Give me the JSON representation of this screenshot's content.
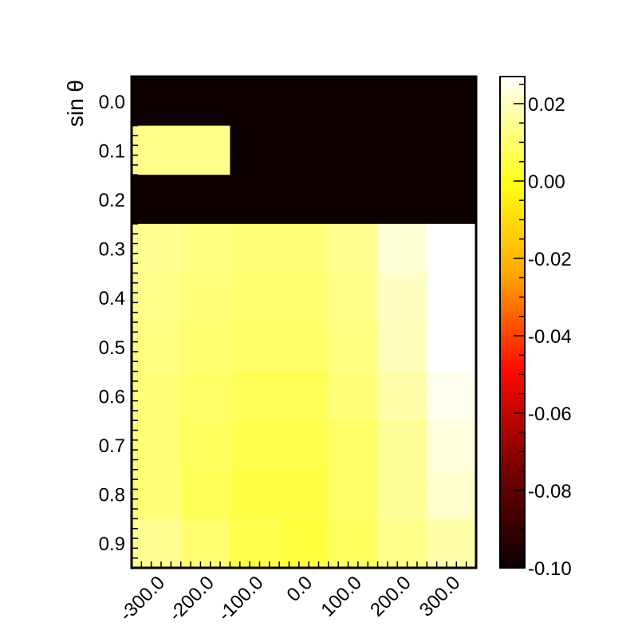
{
  "chart_data": {
    "type": "heatmap",
    "title": "",
    "xlabel": "",
    "ylabel": "sin θ",
    "x_ticks": [
      "-300.0",
      "-200.0",
      "-100.0",
      "0.0",
      "100.0",
      "200.0",
      "300.0"
    ],
    "y_ticks": [
      "0.0",
      "0.1",
      "0.2",
      "0.3",
      "0.4",
      "0.5",
      "0.6",
      "0.7",
      "0.8",
      "0.9"
    ],
    "x_range": [
      -350,
      350
    ],
    "y_range": [
      -0.05,
      0.95
    ],
    "x_bins": [
      -300,
      -200,
      -100,
      0,
      100,
      200,
      300
    ],
    "y_bins": [
      0.0,
      0.1,
      0.2,
      0.3,
      0.4,
      0.5,
      0.6,
      0.7,
      0.8,
      0.9
    ],
    "x_bin_width": 100,
    "y_bin_width": 0.1,
    "z": [
      [
        -0.1,
        -0.1,
        -0.1,
        -0.1,
        -0.1,
        -0.1,
        -0.1
      ],
      [
        0.013,
        0.013,
        -0.1,
        -0.1,
        -0.1,
        -0.1,
        -0.1
      ],
      [
        -0.1,
        -0.1,
        -0.1,
        -0.1,
        -0.1,
        -0.1,
        -0.1
      ],
      [
        0.014,
        0.012,
        0.011,
        0.011,
        0.014,
        0.022,
        0.029
      ],
      [
        0.013,
        0.011,
        0.01,
        0.01,
        0.013,
        0.02,
        0.03
      ],
      [
        0.012,
        0.01,
        0.009,
        0.009,
        0.012,
        0.019,
        0.03
      ],
      [
        0.011,
        0.009,
        0.007,
        0.007,
        0.011,
        0.017,
        0.025
      ],
      [
        0.011,
        0.008,
        0.006,
        0.006,
        0.009,
        0.015,
        0.023
      ],
      [
        0.011,
        0.007,
        0.005,
        0.005,
        0.009,
        0.015,
        0.021
      ],
      [
        0.014,
        0.01,
        0.006,
        0.004,
        0.008,
        0.013,
        0.017
      ]
    ],
    "colorbar": {
      "min": -0.1,
      "max": 0.027,
      "ticks": [
        "0.02",
        "0.00",
        "-0.02",
        "-0.04",
        "-0.06",
        "-0.08",
        "-0.10"
      ],
      "palette": "hot"
    },
    "grid": false,
    "legend": "none"
  }
}
